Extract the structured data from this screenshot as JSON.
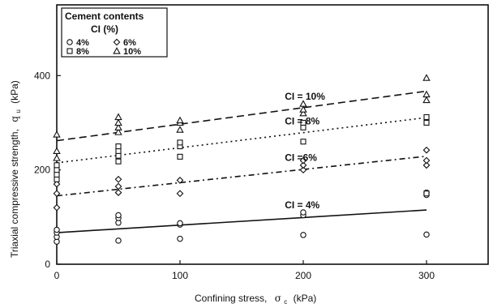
{
  "chart_data": {
    "type": "scatter",
    "title": "",
    "xlabel": "Confining stress,",
    "xlabel_symbol": "σ",
    "xlabel_symbol_sub": "c",
    "xlabel_unit": "(kPa)",
    "ylabel": "Triaxial compressive strength,",
    "ylabel_symbol": "q",
    "ylabel_symbol_sub": "u",
    "ylabel_unit": "(kPa)",
    "xlim": [
      0,
      350
    ],
    "ylim": [
      0,
      550
    ],
    "xticks": [
      0,
      100,
      200,
      300
    ],
    "yticks": [
      0,
      200,
      400
    ],
    "grid": false,
    "legend": {
      "placement": "top-left",
      "title_line1": "Cement contents",
      "title_line2": "CI (%)"
    },
    "series": [
      {
        "name": "4%",
        "marker": "circle",
        "points": [
          [
            0,
            48
          ],
          [
            0,
            58
          ],
          [
            0,
            67
          ],
          [
            0,
            73
          ],
          [
            50,
            50
          ],
          [
            50,
            88
          ],
          [
            50,
            98
          ],
          [
            50,
            104
          ],
          [
            100,
            54
          ],
          [
            100,
            84
          ],
          [
            100,
            87
          ],
          [
            200,
            62
          ],
          [
            200,
            104
          ],
          [
            200,
            110
          ],
          [
            300,
            63
          ],
          [
            300,
            147
          ],
          [
            300,
            152
          ]
        ],
        "fit": {
          "intercept": 67,
          "slope": 0.16,
          "style": "solid",
          "label": "CI = 4%"
        }
      },
      {
        "name": "6%",
        "marker": "diamond",
        "points": [
          [
            0,
            120
          ],
          [
            0,
            150
          ],
          [
            0,
            170
          ],
          [
            50,
            152
          ],
          [
            50,
            165
          ],
          [
            50,
            180
          ],
          [
            100,
            150
          ],
          [
            100,
            178
          ],
          [
            200,
            200
          ],
          [
            200,
            210
          ],
          [
            200,
            220
          ],
          [
            300,
            210
          ],
          [
            300,
            220
          ],
          [
            300,
            242
          ]
        ],
        "fit": {
          "intercept": 145,
          "slope": 0.28,
          "style": "dash-dot",
          "label": "CI =6%"
        }
      },
      {
        "name": "8%",
        "marker": "square",
        "points": [
          [
            0,
            180
          ],
          [
            0,
            190
          ],
          [
            0,
            200
          ],
          [
            0,
            210
          ],
          [
            50,
            218
          ],
          [
            50,
            230
          ],
          [
            50,
            240
          ],
          [
            50,
            250
          ],
          [
            100,
            228
          ],
          [
            100,
            250
          ],
          [
            100,
            258
          ],
          [
            200,
            260
          ],
          [
            200,
            290
          ],
          [
            200,
            300
          ],
          [
            300,
            150
          ],
          [
            300,
            300
          ],
          [
            300,
            312
          ]
        ],
        "fit": {
          "intercept": 215,
          "slope": 0.32,
          "style": "dotted",
          "label": "CI = 8%"
        }
      },
      {
        "name": "10%",
        "marker": "triangle",
        "points": [
          [
            0,
            225
          ],
          [
            0,
            240
          ],
          [
            0,
            275
          ],
          [
            50,
            280
          ],
          [
            50,
            290
          ],
          [
            50,
            300
          ],
          [
            50,
            312
          ],
          [
            100,
            285
          ],
          [
            100,
            300
          ],
          [
            100,
            305
          ],
          [
            200,
            320
          ],
          [
            200,
            328
          ],
          [
            200,
            340
          ],
          [
            300,
            348
          ],
          [
            300,
            360
          ],
          [
            300,
            395
          ]
        ],
        "fit": {
          "intercept": 262,
          "slope": 0.35,
          "style": "dashed",
          "label": "CI = 10%"
        }
      }
    ]
  }
}
